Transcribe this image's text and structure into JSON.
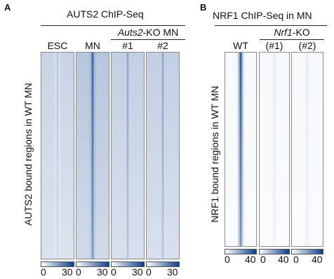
{
  "panel_a": {
    "letter": "A",
    "title": "AUTS2 ChIP-Seq",
    "ko_label_italic": "Auts2",
    "ko_label_rest": "-KO MN",
    "columns": [
      "ESC",
      "MN",
      "#1",
      "#2"
    ],
    "y_label": "AUTS2 bound regions in WT MN",
    "colorbar_min": "0",
    "colorbar_max": "30",
    "signal_level": [
      0.35,
      0.95,
      0.55,
      0.55
    ]
  },
  "panel_b": {
    "letter": "B",
    "title": "NRF1 ChIP-Seq in MN",
    "ko_label_italic": "Nrf1",
    "ko_label_rest": "-KO",
    "columns": [
      "WT",
      "(#1)",
      "(#2)"
    ],
    "y_label": "NRF1 bound regions in WT MN",
    "colorbar_min": "0",
    "colorbar_max": "40",
    "signal_level": [
      1.0,
      0.12,
      0.12
    ]
  },
  "colors": {
    "heat_low": "#ffffff",
    "heat_high": "#0b3f8c",
    "frame": "#8a8a8a"
  }
}
